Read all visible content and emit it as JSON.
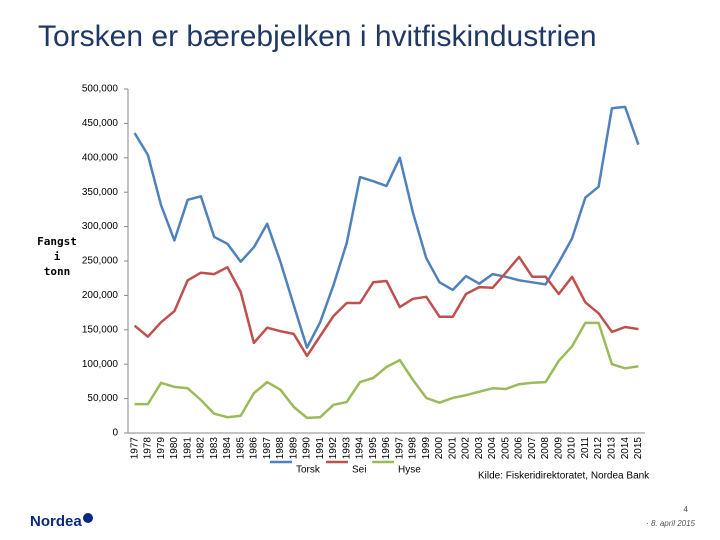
{
  "chart_data": {
    "type": "line",
    "title": "Torsken er bærebjelken i hvitfiskindustrien",
    "ylabel": [
      "Fangst",
      "i",
      "tonn"
    ],
    "source": "Kilde: Fiskeridirektoratet, Nordea Bank",
    "categories": [
      "1977",
      "1978",
      "1979",
      "1980",
      "1981",
      "1982",
      "1983",
      "1984",
      "1985",
      "1986",
      "1987",
      "1988",
      "1989",
      "1990",
      "1991",
      "1992",
      "1993",
      "1994",
      "1995",
      "1996",
      "1997",
      "1998",
      "1999",
      "2000",
      "2001",
      "2002",
      "2003",
      "2004",
      "2005",
      "2006",
      "2007",
      "2008",
      "2009",
      "2010",
      "2011",
      "2012",
      "2013",
      "2014",
      "2015"
    ],
    "series": [
      {
        "name": "Torsk",
        "color": "#4f81bd",
        "values": [
          436000,
          404000,
          331000,
          280000,
          339000,
          344000,
          285000,
          275000,
          249000,
          270000,
          304000,
          249000,
          186000,
          124000,
          161000,
          215000,
          276000,
          372000,
          366000,
          359000,
          400000,
          320000,
          254000,
          219000,
          208000,
          228000,
          217000,
          231000,
          227000,
          222000,
          219000,
          216000,
          248000,
          283000,
          342000,
          358000,
          472000,
          474000,
          419000
        ]
      },
      {
        "name": "Sei",
        "color": "#c0504d",
        "values": [
          156000,
          140000,
          161000,
          177000,
          222000,
          233000,
          231000,
          241000,
          205000,
          131000,
          153000,
          148000,
          144000,
          112000,
          141000,
          170000,
          189000,
          189000,
          219000,
          221000,
          183000,
          195000,
          198000,
          169000,
          169000,
          202000,
          212000,
          211000,
          233000,
          256000,
          227000,
          227000,
          202000,
          227000,
          190000,
          174000,
          147000,
          154000,
          151000
        ]
      },
      {
        "name": "Hyse",
        "color": "#9bbb59",
        "values": [
          42000,
          42000,
          73000,
          67000,
          65000,
          48000,
          28000,
          23000,
          25000,
          58000,
          74000,
          63000,
          38000,
          22000,
          23000,
          41000,
          45000,
          74000,
          80000,
          96000,
          106000,
          77000,
          51000,
          44000,
          51000,
          55000,
          60000,
          65000,
          64000,
          71000,
          73000,
          74000,
          105000,
          126000,
          160000,
          160000,
          100000,
          94000,
          97000
        ]
      }
    ],
    "ylim": [
      0,
      500000
    ],
    "yticks": [
      0,
      {
        "value": 50000,
        "label": "50,000"
      },
      {
        "value": 100000,
        "label": "100,000"
      },
      {
        "value": 150000,
        "label": "150,000"
      },
      {
        "value": 200000,
        "label": "200,000"
      },
      {
        "value": 250000,
        "label": "250,000"
      },
      {
        "value": 300000,
        "label": "300,000"
      },
      {
        "value": 350000,
        "label": "350,000"
      },
      {
        "value": 400000,
        "label": "400,000"
      },
      {
        "value": 450000,
        "label": "450,000"
      },
      {
        "value": 500000,
        "label": "500,000"
      }
    ],
    "grid": false
  },
  "slide": {
    "logo": "Nordea",
    "page": "4",
    "date": "· 8. april 2015"
  }
}
